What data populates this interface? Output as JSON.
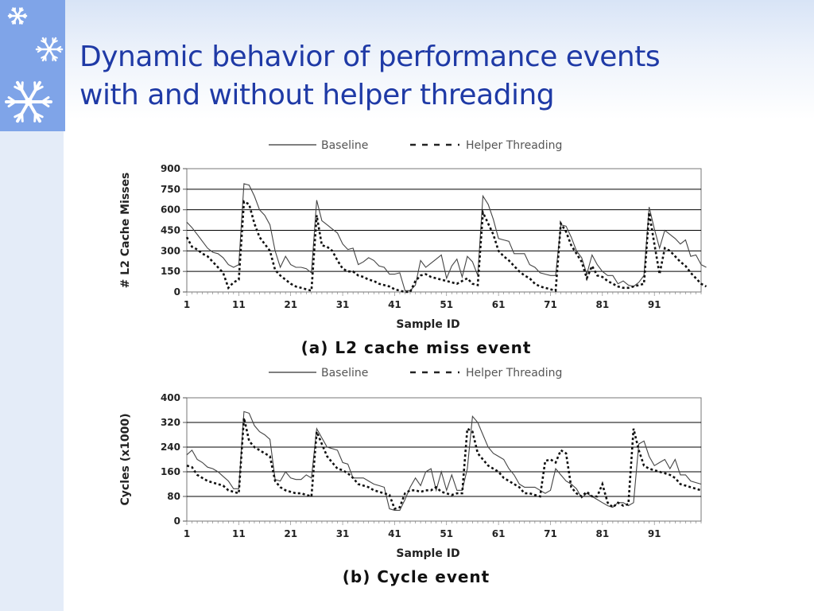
{
  "slide": {
    "title_line1": "Dynamic behavior of performance events",
    "title_line2": "with and without helper threading",
    "accent_color": "#1f3aa6",
    "sidebar_color": "#7fa4e8",
    "decorations": [
      "snowflake-icon",
      "snowflake-icon",
      "snowflake-icon"
    ]
  },
  "chart_data": [
    {
      "type": "line",
      "title": "(a) L2 cache miss event",
      "xlabel": "Sample ID",
      "ylabel": "# L2 Cache Misses",
      "xticks": [
        1,
        11,
        21,
        31,
        41,
        51,
        61,
        71,
        81,
        91
      ],
      "yticks": [
        0,
        150,
        300,
        450,
        600,
        750,
        900
      ],
      "ylim": [
        0,
        900
      ],
      "xlim": [
        1,
        100
      ],
      "grid": "horizontal",
      "legend_position": "top",
      "series": [
        {
          "name": "Baseline",
          "style": "solid",
          "values": [
            510,
            470,
            420,
            370,
            320,
            290,
            280,
            250,
            200,
            180,
            200,
            790,
            780,
            700,
            600,
            560,
            490,
            300,
            180,
            260,
            200,
            180,
            180,
            170,
            140,
            670,
            520,
            490,
            460,
            430,
            350,
            310,
            320,
            200,
            220,
            250,
            230,
            190,
            180,
            130,
            130,
            140,
            10,
            10,
            50,
            230,
            180,
            210,
            240,
            270,
            100,
            190,
            240,
            110,
            260,
            220,
            120,
            700,
            640,
            530,
            390,
            380,
            370,
            280,
            280,
            280,
            200,
            180,
            140,
            130,
            120,
            120,
            490,
            480,
            400,
            300,
            250,
            130,
            270,
            200,
            150,
            120,
            120,
            60,
            80,
            50,
            40,
            70,
            120,
            620,
            460,
            320,
            450,
            420,
            390,
            350,
            380,
            260,
            270,
            200,
            180
          ]
        },
        {
          "name": "Helper Threading",
          "style": "dashed",
          "values": [
            400,
            330,
            310,
            280,
            260,
            220,
            180,
            140,
            30,
            70,
            90,
            660,
            640,
            500,
            400,
            350,
            300,
            160,
            120,
            90,
            60,
            40,
            30,
            20,
            10,
            560,
            340,
            330,
            300,
            230,
            170,
            150,
            150,
            120,
            110,
            90,
            80,
            60,
            50,
            40,
            20,
            10,
            0,
            0,
            80,
            120,
            130,
            110,
            100,
            90,
            80,
            70,
            60,
            80,
            100,
            60,
            50,
            580,
            500,
            420,
            300,
            260,
            230,
            190,
            150,
            120,
            100,
            60,
            40,
            30,
            20,
            10,
            500,
            440,
            340,
            280,
            220,
            100,
            190,
            120,
            110,
            80,
            60,
            40,
            30,
            30,
            40,
            50,
            60,
            580,
            350,
            130,
            320,
            300,
            260,
            220,
            190,
            140,
            100,
            60,
            40
          ]
        }
      ]
    },
    {
      "type": "line",
      "title": "(b) Cycle event",
      "xlabel": "Sample ID",
      "ylabel": "Cycles (x1000)",
      "xticks": [
        1,
        11,
        21,
        31,
        41,
        51,
        61,
        71,
        81,
        91
      ],
      "yticks": [
        0,
        80,
        160,
        240,
        320,
        400
      ],
      "ylim": [
        0,
        400
      ],
      "xlim": [
        1,
        100
      ],
      "grid": "horizontal",
      "legend_position": "top",
      "series": [
        {
          "name": "Baseline",
          "style": "solid",
          "values": [
            215,
            230,
            200,
            190,
            175,
            170,
            160,
            145,
            130,
            105,
            105,
            355,
            350,
            310,
            290,
            280,
            265,
            135,
            130,
            160,
            140,
            135,
            135,
            150,
            140,
            300,
            270,
            240,
            235,
            230,
            190,
            185,
            140,
            140,
            140,
            130,
            120,
            115,
            110,
            40,
            35,
            35,
            70,
            110,
            140,
            115,
            160,
            170,
            100,
            160,
            100,
            150,
            100,
            100,
            170,
            340,
            320,
            280,
            240,
            220,
            210,
            200,
            170,
            150,
            120,
            110,
            110,
            110,
            100,
            90,
            100,
            170,
            150,
            130,
            120,
            105,
            75,
            90,
            80,
            70,
            60,
            50,
            45,
            60,
            60,
            50,
            60,
            250,
            260,
            210,
            180,
            190,
            200,
            170,
            200,
            150,
            150,
            130,
            125,
            120
          ]
        },
        {
          "name": "Helper Threading",
          "style": "dashed",
          "values": [
            180,
            175,
            150,
            140,
            130,
            125,
            120,
            115,
            100,
            95,
            90,
            335,
            260,
            240,
            230,
            220,
            210,
            130,
            110,
            100,
            95,
            90,
            90,
            85,
            80,
            290,
            250,
            210,
            190,
            170,
            165,
            155,
            140,
            120,
            115,
            110,
            100,
            95,
            90,
            85,
            40,
            45,
            90,
            100,
            100,
            95,
            100,
            100,
            110,
            95,
            90,
            85,
            90,
            90,
            300,
            290,
            220,
            200,
            180,
            170,
            160,
            140,
            130,
            120,
            110,
            90,
            90,
            85,
            80,
            195,
            200,
            190,
            230,
            220,
            110,
            90,
            80,
            95,
            80,
            80,
            120,
            60,
            45,
            60,
            50,
            55,
            300,
            230,
            180,
            170,
            165,
            160,
            155,
            150,
            140,
            120,
            115,
            110,
            105,
            100
          ]
        }
      ]
    }
  ]
}
